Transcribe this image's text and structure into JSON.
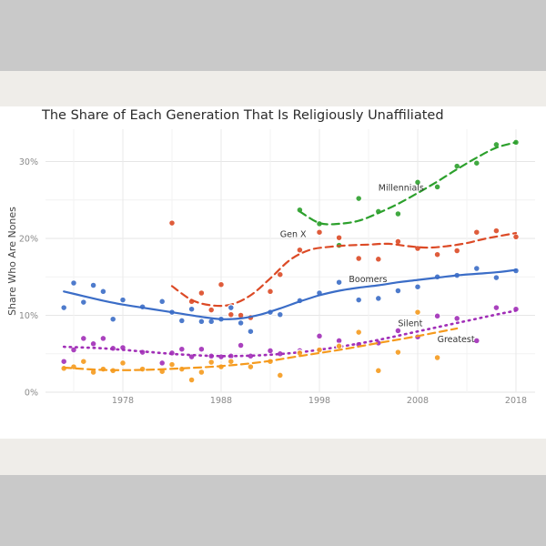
{
  "chart_data": {
    "type": "scatter",
    "title": "The Share of Each Generation That Is Religiously Unaffiliated",
    "xlabel": "",
    "ylabel": "Share Who Are Nones",
    "xlim": [
      1971,
      2020
    ],
    "ylim": [
      0,
      33
    ],
    "x_ticks": [
      1978,
      1988,
      1998,
      2008,
      2018
    ],
    "y_ticks": [
      0,
      10,
      20,
      30
    ],
    "y_tick_labels": [
      "0%",
      "10%",
      "20%",
      "30%"
    ],
    "grid": true,
    "series": [
      {
        "name": "Millennials",
        "color": "#2ca02c",
        "line_style": "dashed",
        "label_at": [
          2004,
          26.2
        ],
        "points": [
          [
            1996,
            23.7
          ],
          [
            1998,
            21.9
          ],
          [
            2000,
            19.1
          ],
          [
            2002,
            25.2
          ],
          [
            2004,
            23.5
          ],
          [
            2006,
            23.2
          ],
          [
            2008,
            27.3
          ],
          [
            2010,
            26.7
          ],
          [
            2012,
            29.4
          ],
          [
            2014,
            29.8
          ],
          [
            2016,
            32.2
          ],
          [
            2018,
            32.5
          ]
        ],
        "trend": [
          [
            1996,
            23.5
          ],
          [
            1998,
            22.0
          ],
          [
            2000,
            21.9
          ],
          [
            2002,
            22.3
          ],
          [
            2004,
            23.3
          ],
          [
            2006,
            24.5
          ],
          [
            2008,
            25.9
          ],
          [
            2010,
            27.4
          ],
          [
            2012,
            29.0
          ],
          [
            2014,
            30.5
          ],
          [
            2016,
            31.8
          ],
          [
            2018,
            32.5
          ]
        ]
      },
      {
        "name": "Gen X",
        "color": "#dc4a26",
        "line_style": "dashed",
        "label_at": [
          1994,
          20.2
        ],
        "points": [
          [
            1983,
            22.0
          ],
          [
            1985,
            11.8
          ],
          [
            1986,
            12.9
          ],
          [
            1987,
            10.7
          ],
          [
            1988,
            14.0
          ],
          [
            1989,
            10.1
          ],
          [
            1990,
            10.0
          ],
          [
            1991,
            9.7
          ],
          [
            1993,
            13.1
          ],
          [
            1994,
            15.3
          ],
          [
            1996,
            18.5
          ],
          [
            1998,
            20.8
          ],
          [
            2000,
            20.1
          ],
          [
            2002,
            17.4
          ],
          [
            2004,
            17.3
          ],
          [
            2006,
            19.6
          ],
          [
            2008,
            18.7
          ],
          [
            2010,
            17.9
          ],
          [
            2012,
            18.4
          ],
          [
            2014,
            20.8
          ],
          [
            2016,
            21.0
          ],
          [
            2018,
            20.2
          ]
        ],
        "trend": [
          [
            1983,
            13.8
          ],
          [
            1985,
            12.0
          ],
          [
            1987,
            11.3
          ],
          [
            1989,
            11.4
          ],
          [
            1991,
            12.6
          ],
          [
            1993,
            14.8
          ],
          [
            1995,
            17.2
          ],
          [
            1997,
            18.5
          ],
          [
            1999,
            18.9
          ],
          [
            2001,
            19.1
          ],
          [
            2003,
            19.2
          ],
          [
            2005,
            19.3
          ],
          [
            2007,
            19.0
          ],
          [
            2009,
            18.8
          ],
          [
            2011,
            19.0
          ],
          [
            2013,
            19.4
          ],
          [
            2015,
            20.0
          ],
          [
            2018,
            20.7
          ]
        ]
      },
      {
        "name": "Boomers",
        "color": "#3b6dc7",
        "line_style": "solid",
        "label_at": [
          2001,
          14.3
        ],
        "points": [
          [
            1972,
            11.0
          ],
          [
            1973,
            14.2
          ],
          [
            1974,
            11.7
          ],
          [
            1975,
            13.9
          ],
          [
            1976,
            13.1
          ],
          [
            1977,
            9.5
          ],
          [
            1978,
            12.0
          ],
          [
            1980,
            11.1
          ],
          [
            1982,
            11.8
          ],
          [
            1983,
            10.4
          ],
          [
            1984,
            9.3
          ],
          [
            1985,
            10.8
          ],
          [
            1986,
            9.2
          ],
          [
            1987,
            9.2
          ],
          [
            1988,
            9.5
          ],
          [
            1989,
            11.0
          ],
          [
            1990,
            9.0
          ],
          [
            1991,
            7.9
          ],
          [
            1993,
            10.4
          ],
          [
            1994,
            10.1
          ],
          [
            1996,
            11.9
          ],
          [
            1998,
            12.9
          ],
          [
            2000,
            14.3
          ],
          [
            2002,
            12.0
          ],
          [
            2004,
            12.2
          ],
          [
            2006,
            13.2
          ],
          [
            2008,
            13.7
          ],
          [
            2010,
            15.0
          ],
          [
            2012,
            15.2
          ],
          [
            2014,
            16.1
          ],
          [
            2016,
            14.9
          ],
          [
            2018,
            15.8
          ]
        ],
        "trend": [
          [
            1972,
            13.1
          ],
          [
            1974,
            12.5
          ],
          [
            1976,
            11.9
          ],
          [
            1978,
            11.4
          ],
          [
            1980,
            11.0
          ],
          [
            1982,
            10.6
          ],
          [
            1984,
            10.2
          ],
          [
            1986,
            9.8
          ],
          [
            1988,
            9.5
          ],
          [
            1990,
            9.6
          ],
          [
            1992,
            10.1
          ],
          [
            1994,
            10.9
          ],
          [
            1996,
            11.8
          ],
          [
            1998,
            12.6
          ],
          [
            2000,
            13.2
          ],
          [
            2002,
            13.6
          ],
          [
            2004,
            13.9
          ],
          [
            2006,
            14.3
          ],
          [
            2008,
            14.6
          ],
          [
            2010,
            14.9
          ],
          [
            2012,
            15.2
          ],
          [
            2014,
            15.4
          ],
          [
            2016,
            15.6
          ],
          [
            2018,
            15.9
          ]
        ]
      },
      {
        "name": "Silent",
        "color": "#a12eb7",
        "line_style": "dotted",
        "label_at": [
          2006,
          8.6
        ],
        "points": [
          [
            1972,
            4.0
          ],
          [
            1973,
            5.5
          ],
          [
            1974,
            7.0
          ],
          [
            1975,
            6.3
          ],
          [
            1976,
            7.0
          ],
          [
            1977,
            5.7
          ],
          [
            1978,
            5.8
          ],
          [
            1980,
            5.2
          ],
          [
            1982,
            3.8
          ],
          [
            1983,
            5.1
          ],
          [
            1984,
            5.6
          ],
          [
            1985,
            4.6
          ],
          [
            1986,
            5.6
          ],
          [
            1987,
            4.7
          ],
          [
            1988,
            4.6
          ],
          [
            1989,
            4.7
          ],
          [
            1990,
            6.1
          ],
          [
            1991,
            4.7
          ],
          [
            1993,
            5.4
          ],
          [
            1994,
            5.0
          ],
          [
            1996,
            5.4
          ],
          [
            1998,
            7.3
          ],
          [
            2000,
            6.7
          ],
          [
            2002,
            6.2
          ],
          [
            2004,
            6.4
          ],
          [
            2006,
            8.0
          ],
          [
            2008,
            7.2
          ],
          [
            2010,
            9.9
          ],
          [
            2012,
            9.6
          ],
          [
            2014,
            6.7
          ],
          [
            2016,
            11.0
          ],
          [
            2018,
            10.8
          ]
        ],
        "trend": [
          [
            1972,
            5.9
          ],
          [
            1976,
            5.7
          ],
          [
            1980,
            5.3
          ],
          [
            1984,
            4.9
          ],
          [
            1988,
            4.7
          ],
          [
            1992,
            4.8
          ],
          [
            1996,
            5.2
          ],
          [
            2000,
            5.9
          ],
          [
            2004,
            6.8
          ],
          [
            2008,
            7.9
          ],
          [
            2012,
            9.0
          ],
          [
            2016,
            10.1
          ],
          [
            2018,
            10.6
          ]
        ]
      },
      {
        "name": "Greatest",
        "color": "#f59a1d",
        "line_style": "dashed",
        "label_at": [
          2010,
          6.5
        ],
        "points": [
          [
            1972,
            3.1
          ],
          [
            1973,
            3.3
          ],
          [
            1974,
            4.0
          ],
          [
            1975,
            2.6
          ],
          [
            1976,
            3.0
          ],
          [
            1977,
            2.8
          ],
          [
            1978,
            3.8
          ],
          [
            1980,
            3.0
          ],
          [
            1982,
            2.7
          ],
          [
            1983,
            3.6
          ],
          [
            1984,
            3.0
          ],
          [
            1985,
            1.6
          ],
          [
            1986,
            2.6
          ],
          [
            1987,
            3.9
          ],
          [
            1988,
            3.3
          ],
          [
            1989,
            4.0
          ],
          [
            1991,
            3.3
          ],
          [
            1993,
            4.0
          ],
          [
            1994,
            2.2
          ],
          [
            1996,
            5.1
          ],
          [
            1998,
            5.5
          ],
          [
            2000,
            6.0
          ],
          [
            2002,
            7.8
          ],
          [
            2004,
            2.8
          ],
          [
            2006,
            5.2
          ],
          [
            2008,
            10.4
          ],
          [
            2010,
            4.5
          ]
        ],
        "trend": [
          [
            1972,
            3.2
          ],
          [
            1976,
            2.9
          ],
          [
            1980,
            2.9
          ],
          [
            1984,
            3.1
          ],
          [
            1988,
            3.4
          ],
          [
            1992,
            3.9
          ],
          [
            1996,
            4.7
          ],
          [
            2000,
            5.5
          ],
          [
            2004,
            6.4
          ],
          [
            2008,
            7.3
          ],
          [
            2012,
            8.3
          ]
        ]
      }
    ]
  }
}
